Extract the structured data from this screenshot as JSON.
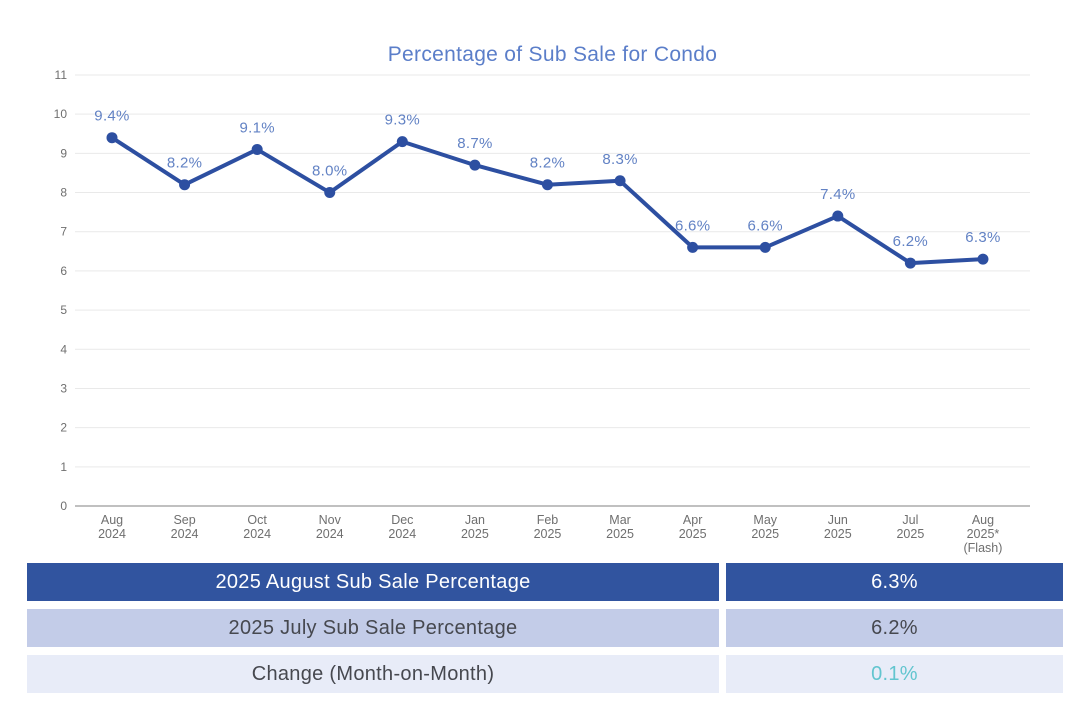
{
  "chart": {
    "title": "Percentage of Sub Sale for Condo"
  },
  "chart_data": {
    "type": "line",
    "title": "Percentage of Sub Sale for Condo",
    "categories": [
      [
        "Aug",
        "2024"
      ],
      [
        "Sep",
        "2024"
      ],
      [
        "Oct",
        "2024"
      ],
      [
        "Nov",
        "2024"
      ],
      [
        "Dec",
        "2024"
      ],
      [
        "Jan",
        "2025"
      ],
      [
        "Feb",
        "2025"
      ],
      [
        "Mar",
        "2025"
      ],
      [
        "Apr",
        "2025"
      ],
      [
        "May",
        "2025"
      ],
      [
        "Jun",
        "2025"
      ],
      [
        "Jul",
        "2025"
      ],
      [
        "Aug",
        "2025*",
        "(Flash)"
      ]
    ],
    "values": [
      9.4,
      8.2,
      9.1,
      8.0,
      9.3,
      8.7,
      8.2,
      8.3,
      6.6,
      6.6,
      7.4,
      6.2,
      6.3
    ],
    "point_labels": [
      "9.4%",
      "8.2%",
      "9.1%",
      "8.0%",
      "9.3%",
      "8.7%",
      "8.2%",
      "8.3%",
      "6.6%",
      "6.6%",
      "7.4%",
      "6.2%",
      "6.3%"
    ],
    "xlabel": "",
    "ylabel": "",
    "ylim": [
      0,
      11
    ],
    "y_ticks": [
      0,
      1,
      2,
      3,
      4,
      5,
      6,
      7,
      8,
      9,
      10,
      11
    ],
    "grid": true,
    "legend_position": "none"
  },
  "colors": {
    "title": "#5b7ec9",
    "line": "#2d4fa1",
    "point_label": "#6282c4",
    "axis_text": "#6f6f6f",
    "gridline": "#e9e9e9",
    "axis_line": "#9a9a9a",
    "change_value": "#62c5cf"
  },
  "table": {
    "rows": [
      {
        "label": "2025 August Sub Sale Percentage",
        "value": "6.3%",
        "bg": "#31549f",
        "label_color": "#ffffff",
        "value_color": "#ffffff"
      },
      {
        "label": "2025 July Sub Sale Percentage",
        "value": "6.2%",
        "bg": "#c3cce8",
        "label_color": "#46484f",
        "value_color": "#46484f"
      },
      {
        "label": "Change (Month-on-Month)",
        "value": "0.1%",
        "bg": "#e8ecf8",
        "label_color": "#46484f",
        "value_color": "#62c5cf"
      }
    ]
  }
}
